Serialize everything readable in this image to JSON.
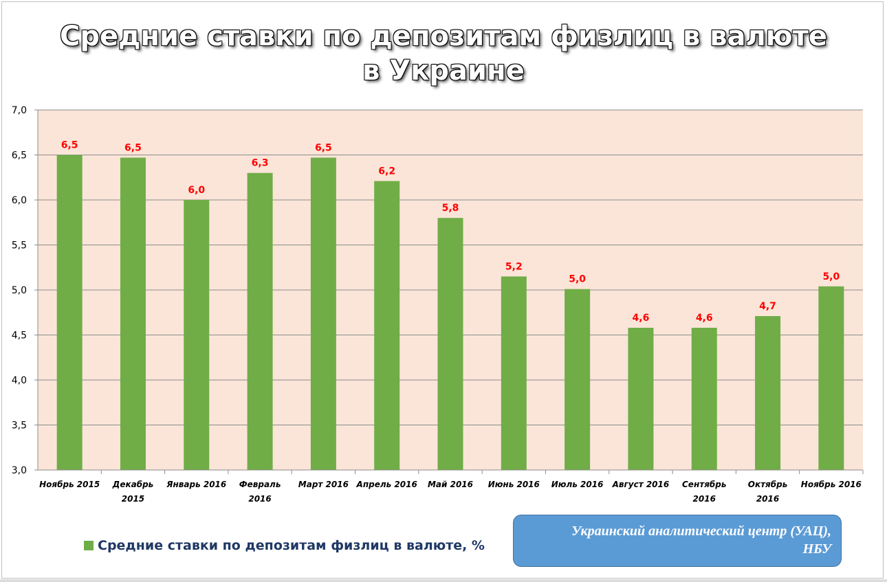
{
  "chart_data": {
    "type": "bar",
    "title": [
      "Средние ставки по депозитам физлиц в валюте",
      "в Украине"
    ],
    "categories": [
      [
        "Ноябрь 2015"
      ],
      [
        "Декабрь",
        "2015"
      ],
      [
        "Январь 2016"
      ],
      [
        "Февраль",
        "2016"
      ],
      [
        "Март 2016"
      ],
      [
        "Апрель 2016"
      ],
      [
        "Май 2016"
      ],
      [
        "Июнь 2016"
      ],
      [
        "Июль 2016"
      ],
      [
        "Август 2016"
      ],
      [
        "Сентябрь",
        "2016"
      ],
      [
        "Октябрь",
        "2016"
      ],
      [
        "Ноябрь 2016"
      ]
    ],
    "values": [
      6.5,
      6.47,
      6.0,
      6.3,
      6.47,
      6.21,
      5.8,
      5.15,
      5.01,
      4.58,
      4.58,
      4.71,
      5.04
    ],
    "data_labels": [
      "6,5",
      "6,5",
      "6,0",
      "6,3",
      "6,5",
      "6,2",
      "5,8",
      "5,2",
      "5,0",
      "4,6",
      "4,6",
      "4,7",
      "5,0"
    ],
    "ylim": [
      3.0,
      7.0
    ],
    "yticks": [
      "3,0",
      "3,5",
      "4,0",
      "4,5",
      "5,0",
      "5,5",
      "6,0",
      "6,5",
      "7,0"
    ],
    "legend": "Средние ставки по депозитам физлиц в валюте, %",
    "legend_position": "bottom-left",
    "grid": true,
    "colors": {
      "bar": "#70ad47",
      "label": "#ff0000",
      "plot_bg": "#fae5d8"
    }
  },
  "source": [
    "Украинский аналитический центр (УАЦ),",
    "НБУ"
  ]
}
